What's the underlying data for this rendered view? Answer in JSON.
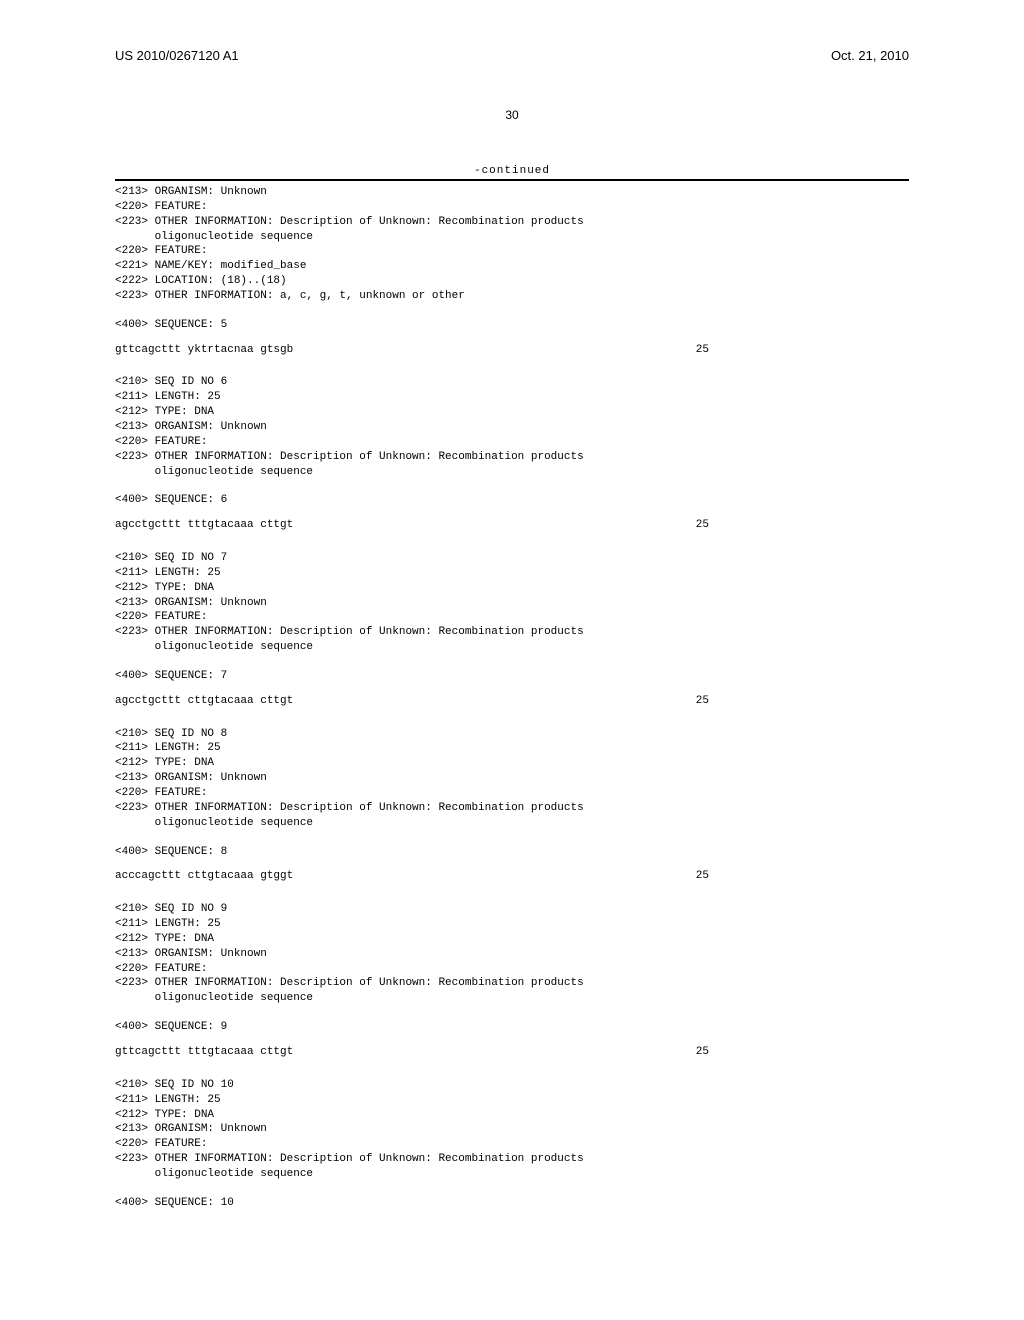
{
  "header": {
    "publication_number": "US 2010/0267120 A1",
    "publication_date": "Oct. 21, 2010",
    "page_number": "30"
  },
  "continued_label": "-continued",
  "sequences": [
    {
      "leading_meta": [
        "<213> ORGANISM: Unknown",
        "<220> FEATURE:",
        "<223> OTHER INFORMATION: Description of Unknown: Recombination products",
        "      oligonucleotide sequence",
        "<220> FEATURE:",
        "<221> NAME/KEY: modified_base",
        "<222> LOCATION: (18)..(18)",
        "<223> OTHER INFORMATION: a, c, g, t, unknown or other"
      ],
      "sequence_header": "<400> SEQUENCE: 5",
      "sequence": "gttcagcttt yktrtacnaa gtsgb",
      "length_label": "25"
    },
    {
      "leading_meta": [
        "<210> SEQ ID NO 6",
        "<211> LENGTH: 25",
        "<212> TYPE: DNA",
        "<213> ORGANISM: Unknown",
        "<220> FEATURE:",
        "<223> OTHER INFORMATION: Description of Unknown: Recombination products",
        "      oligonucleotide sequence"
      ],
      "sequence_header": "<400> SEQUENCE: 6",
      "sequence": "agcctgcttt tttgtacaaa cttgt",
      "length_label": "25"
    },
    {
      "leading_meta": [
        "<210> SEQ ID NO 7",
        "<211> LENGTH: 25",
        "<212> TYPE: DNA",
        "<213> ORGANISM: Unknown",
        "<220> FEATURE:",
        "<223> OTHER INFORMATION: Description of Unknown: Recombination products",
        "      oligonucleotide sequence"
      ],
      "sequence_header": "<400> SEQUENCE: 7",
      "sequence": "agcctgcttt cttgtacaaa cttgt",
      "length_label": "25"
    },
    {
      "leading_meta": [
        "<210> SEQ ID NO 8",
        "<211> LENGTH: 25",
        "<212> TYPE: DNA",
        "<213> ORGANISM: Unknown",
        "<220> FEATURE:",
        "<223> OTHER INFORMATION: Description of Unknown: Recombination products",
        "      oligonucleotide sequence"
      ],
      "sequence_header": "<400> SEQUENCE: 8",
      "sequence": "acccagcttt cttgtacaaa gtggt",
      "length_label": "25"
    },
    {
      "leading_meta": [
        "<210> SEQ ID NO 9",
        "<211> LENGTH: 25",
        "<212> TYPE: DNA",
        "<213> ORGANISM: Unknown",
        "<220> FEATURE:",
        "<223> OTHER INFORMATION: Description of Unknown: Recombination products",
        "      oligonucleotide sequence"
      ],
      "sequence_header": "<400> SEQUENCE: 9",
      "sequence": "gttcagcttt tttgtacaaa cttgt",
      "length_label": "25"
    },
    {
      "leading_meta": [
        "<210> SEQ ID NO 10",
        "<211> LENGTH: 25",
        "<212> TYPE: DNA",
        "<213> ORGANISM: Unknown",
        "<220> FEATURE:",
        "<223> OTHER INFORMATION: Description of Unknown: Recombination products",
        "      oligonucleotide sequence"
      ],
      "sequence_header": "<400> SEQUENCE: 10",
      "sequence": "",
      "length_label": ""
    }
  ]
}
